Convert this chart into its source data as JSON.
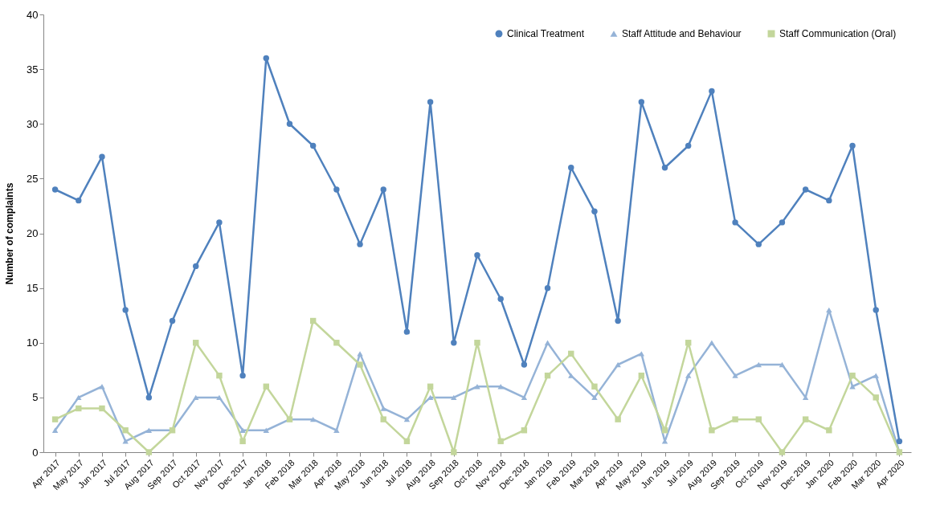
{
  "chart_data": {
    "type": "line",
    "ylabel": "Number of complaints",
    "categories": [
      "Apr 2017",
      "May 2017",
      "Jun 2017",
      "Jul 2017",
      "Aug 2017",
      "Sep 2017",
      "Oct 2017",
      "Nov 2017",
      "Dec 2017",
      "Jan 2018",
      "Feb 2018",
      "Mar 2018",
      "Apr 2018",
      "May 2018",
      "Jun 2018",
      "Jul 2018",
      "Aug 2018",
      "Sep 2018",
      "Oct 2018",
      "Nov 2018",
      "Dec 2018",
      "Jan 2019",
      "Feb 2019",
      "Mar 2019",
      "Apr 2019",
      "May 2019",
      "Jun 2019",
      "Jul 2019",
      "Aug 2019",
      "Sep 2019",
      "Oct 2019",
      "Nov 2019",
      "Dec 2019",
      "Jan 2020",
      "Feb 2020",
      "Mar 2020",
      "Apr 2020"
    ],
    "series": [
      {
        "name": "Clinical Treatment",
        "color": "#4f81bd",
        "marker": "circle",
        "values": [
          24,
          23,
          27,
          13,
          5,
          12,
          17,
          21,
          7,
          36,
          30,
          28,
          24,
          19,
          24,
          11,
          32,
          10,
          18,
          14,
          8,
          15,
          26,
          22,
          12,
          32,
          26,
          28,
          33,
          21,
          19,
          21,
          24,
          23,
          28,
          13,
          1
        ]
      },
      {
        "name": "Staff Attitude and Behaviour",
        "color": "#95b3d7",
        "marker": "triangle",
        "values": [
          2,
          5,
          6,
          1,
          2,
          2,
          5,
          5,
          2,
          2,
          3,
          3,
          2,
          9,
          4,
          3,
          5,
          5,
          6,
          6,
          5,
          10,
          7,
          5,
          8,
          9,
          1,
          7,
          10,
          7,
          8,
          8,
          5,
          13,
          6,
          7,
          0
        ]
      },
      {
        "name": "Staff Communication (Oral)",
        "color": "#c3d69b",
        "marker": "square",
        "values": [
          3,
          4,
          4,
          2,
          0,
          2,
          10,
          7,
          1,
          6,
          3,
          12,
          10,
          8,
          3,
          1,
          6,
          0,
          10,
          1,
          2,
          7,
          9,
          6,
          3,
          7,
          2,
          10,
          2,
          3,
          3,
          0,
          3,
          2,
          7,
          5,
          0
        ]
      }
    ],
    "ylim": [
      0,
      40
    ],
    "yticks": [
      0,
      5,
      10,
      15,
      20,
      25,
      30,
      35,
      40
    ],
    "grid": false,
    "legend": "top right",
    "line_style": "solid"
  }
}
